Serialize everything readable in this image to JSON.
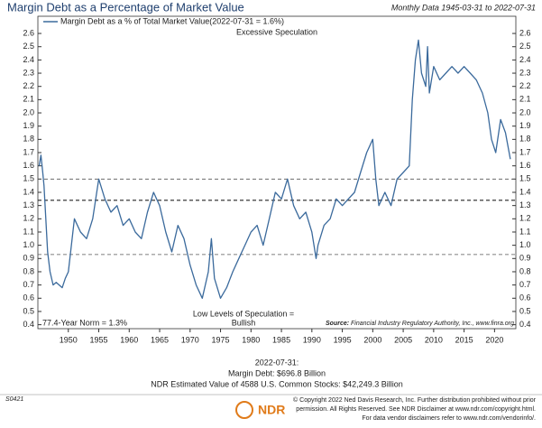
{
  "chart_data": {
    "type": "line",
    "title": "Margin Debt as a Percentage of Market Value",
    "subtitle": "Monthly Data 1945-03-31 to 2022-07-31",
    "annotations": {
      "top": "Excessive Speculation",
      "bottom_line1": "Low Levels of Speculation =",
      "bottom_line2": "Bullish",
      "norm": "77.4-Year Norm = 1.3%",
      "source": "Source:",
      "source_text": "Financial Industry Regulatory Authority, Inc., www.finra.org"
    },
    "reference_lines": [
      1.5,
      1.34,
      0.93
    ],
    "xlim": [
      1945,
      2023.5
    ],
    "xticks": [
      1950,
      1955,
      1960,
      1965,
      1970,
      1975,
      1980,
      1985,
      1990,
      1995,
      2000,
      2005,
      2010,
      2015,
      2020
    ],
    "ylim": [
      0.37,
      2.73
    ],
    "yticks": [
      0.4,
      0.5,
      0.6,
      0.7,
      0.8,
      0.9,
      1,
      1.1,
      1.2,
      1.3,
      1.4,
      1.5,
      1.6,
      1.7,
      1.8,
      1.9,
      2,
      2.1,
      2.2,
      2.3,
      2.4,
      2.5,
      2.6
    ],
    "yticks_labels": [
      "0.4",
      "0.5",
      "0.6",
      "0.7",
      "0.8",
      "0.9",
      "1.0",
      "1.1",
      "1.2",
      "1.3",
      "1.4",
      "1.5",
      "1.6",
      "1.7",
      "1.8",
      "1.9",
      "2.0",
      "2.1",
      "2.2",
      "2.3",
      "2.4",
      "2.5",
      "2.6"
    ],
    "series": [
      {
        "name": "Margin Debt as a % of Total Market Value(2022-07-31 = 1.6%)",
        "color": "#3b6a9c",
        "x": [
          1945.2,
          1945.5,
          1945.8,
          1946.0,
          1946.3,
          1946.6,
          1947.0,
          1947.5,
          1948.0,
          1948.5,
          1949.0,
          1949.5,
          1950.0,
          1951.0,
          1952.0,
          1953.0,
          1954.0,
          1955.0,
          1956.0,
          1957.0,
          1958.0,
          1959.0,
          1960.0,
          1961.0,
          1962.0,
          1963.0,
          1964.0,
          1965.0,
          1966.0,
          1967.0,
          1968.0,
          1969.0,
          1970.0,
          1971.0,
          1972.0,
          1973.0,
          1973.5,
          1974.0,
          1975.0,
          1976.0,
          1977.0,
          1978.0,
          1979.0,
          1980.0,
          1981.0,
          1982.0,
          1983.0,
          1984.0,
          1985.0,
          1986.0,
          1987.0,
          1988.0,
          1989.0,
          1990.0,
          1990.7,
          1991.0,
          1992.0,
          1993.0,
          1994.0,
          1995.0,
          1996.0,
          1997.0,
          1998.0,
          1999.0,
          2000.0,
          2000.5,
          2001.0,
          2002.0,
          2003.0,
          2004.0,
          2005.0,
          2006.0,
          2006.5,
          2007.0,
          2007.5,
          2008.0,
          2008.7,
          2009.0,
          2009.3,
          2010.0,
          2011.0,
          2012.0,
          2013.0,
          2014.0,
          2015.0,
          2016.0,
          2017.0,
          2018.0,
          2018.9,
          2019.5,
          2020.2,
          2021.0,
          2021.8,
          2022.6
        ],
        "values": [
          1.6,
          1.68,
          1.55,
          1.45,
          1.2,
          0.95,
          0.8,
          0.7,
          0.72,
          0.7,
          0.68,
          0.75,
          0.8,
          1.2,
          1.1,
          1.05,
          1.2,
          1.5,
          1.35,
          1.25,
          1.3,
          1.15,
          1.2,
          1.1,
          1.05,
          1.25,
          1.4,
          1.3,
          1.1,
          0.95,
          1.15,
          1.05,
          0.85,
          0.7,
          0.6,
          0.8,
          1.05,
          0.75,
          0.6,
          0.68,
          0.8,
          0.9,
          1.0,
          1.1,
          1.15,
          1.0,
          1.2,
          1.4,
          1.35,
          1.5,
          1.3,
          1.2,
          1.25,
          1.1,
          0.9,
          1.0,
          1.15,
          1.2,
          1.35,
          1.3,
          1.35,
          1.4,
          1.55,
          1.7,
          1.8,
          1.5,
          1.3,
          1.4,
          1.3,
          1.5,
          1.55,
          1.6,
          2.1,
          2.4,
          2.55,
          2.3,
          2.2,
          2.5,
          2.15,
          2.35,
          2.25,
          2.3,
          2.35,
          2.3,
          2.35,
          2.3,
          2.25,
          2.15,
          2.0,
          1.8,
          1.7,
          1.95,
          1.85,
          1.65
        ]
      }
    ],
    "footer": {
      "date": "2022-07-31:",
      "margin_debt": "Margin Debt: $696.8 Billion",
      "value": "NDR Estimated Value of 4588 U.S. Common Stocks: $42,249.3 Billion",
      "code": "S0421",
      "logo": "NDR",
      "copyright1": "© Copyright 2022 Ned Davis Research, Inc. Further distribution prohibited without prior",
      "copyright2": "permission. All Rights Reserved. See NDR Disclaimer at www.ndr.com/copyright.html.",
      "copyright3": "For data vendor disclaimers refer to www.ndr.com/vendorinfo/."
    }
  }
}
